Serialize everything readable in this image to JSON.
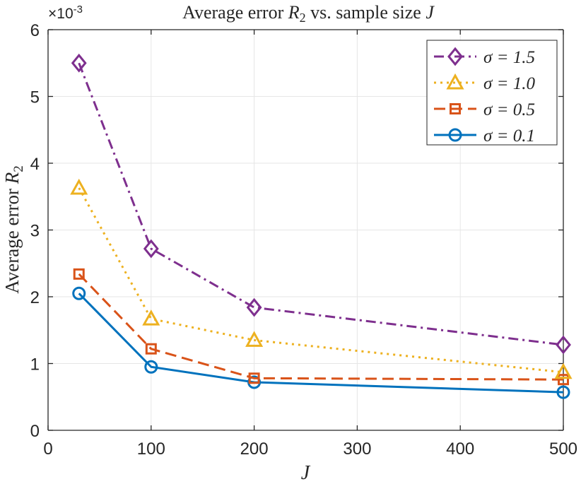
{
  "chart_data": {
    "type": "line",
    "title": {
      "text": "Average error ",
      "var": "R",
      "sub": "2",
      "mid": " vs.  sample size ",
      "var2": "J"
    },
    "xlabel": "J",
    "ylabel": {
      "text": "Average error ",
      "var": "R",
      "sub": "2"
    },
    "y_exponent": "×10",
    "y_exponent_power": "-3",
    "xlim": [
      0,
      500
    ],
    "ylim": [
      0,
      6
    ],
    "xticks": [
      0,
      100,
      200,
      300,
      400,
      500
    ],
    "yticks": [
      0,
      1,
      2,
      3,
      4,
      5,
      6
    ],
    "x": [
      30,
      100,
      200,
      500
    ],
    "grid": true,
    "legend_position": "top-right",
    "series": [
      {
        "name": "σ = 1.5",
        "values": [
          5.5,
          2.72,
          1.84,
          1.28
        ],
        "color": "#7E2F8E",
        "linestyle": "dashdot",
        "marker": "diamond"
      },
      {
        "name": "σ = 1.0",
        "values": [
          3.63,
          1.67,
          1.35,
          0.87
        ],
        "color": "#EDB120",
        "linestyle": "dotted",
        "marker": "triangle"
      },
      {
        "name": "σ = 0.5",
        "values": [
          2.34,
          1.22,
          0.78,
          0.76
        ],
        "color": "#D95319",
        "linestyle": "dashed",
        "marker": "square"
      },
      {
        "name": "σ = 0.1",
        "values": [
          2.05,
          0.95,
          0.72,
          0.57
        ],
        "color": "#0072BD",
        "linestyle": "solid",
        "marker": "circle"
      }
    ]
  }
}
